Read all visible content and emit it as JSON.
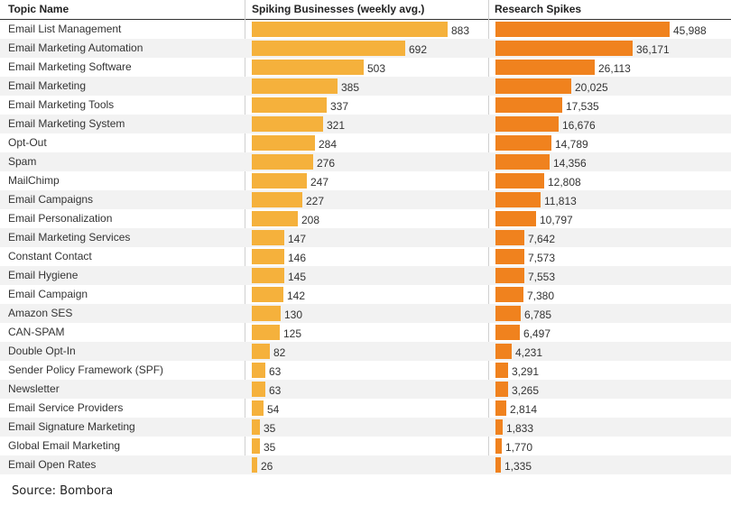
{
  "chart_data": {
    "type": "bar",
    "headers": {
      "topic": "Topic Name",
      "series_a": "Spiking Businesses (weekly avg.)",
      "series_b": "Research Spikes"
    },
    "categories": [
      "Email List Management",
      "Email Marketing Automation",
      "Email Marketing Software",
      "Email Marketing",
      "Email Marketing Tools",
      "Email Marketing System",
      "Opt-Out",
      "Spam",
      "MailChimp",
      "Email Campaigns",
      "Email Personalization",
      "Email Marketing Services",
      "Constant Contact",
      "Email Hygiene",
      "Email Campaign",
      "Amazon SES",
      "CAN-SPAM",
      "Double Opt-In",
      "Sender Policy Framework (SPF)",
      "Newsletter",
      "Email Service Providers",
      "Email Signature Marketing",
      "Global Email Marketing",
      "Email Open Rates"
    ],
    "series": [
      {
        "name": "Spiking Businesses (weekly avg.)",
        "color": "#f5b13c",
        "values": [
          883,
          692,
          503,
          385,
          337,
          321,
          284,
          276,
          247,
          227,
          208,
          147,
          146,
          145,
          142,
          130,
          125,
          82,
          63,
          63,
          54,
          35,
          35,
          26
        ],
        "labels": [
          "883",
          "692",
          "503",
          "385",
          "337",
          "321",
          "284",
          "276",
          "247",
          "227",
          "208",
          "147",
          "146",
          "145",
          "142",
          "130",
          "125",
          "82",
          "63",
          "63",
          "54",
          "35",
          "35",
          "26"
        ]
      },
      {
        "name": "Research Spikes",
        "color": "#f0821e",
        "values": [
          45988,
          36171,
          26113,
          20025,
          17535,
          16676,
          14789,
          14356,
          12808,
          11813,
          10797,
          7642,
          7573,
          7553,
          7380,
          6785,
          6497,
          4231,
          3291,
          3265,
          2814,
          1833,
          1770,
          1335
        ],
        "labels": [
          "45,988",
          "36,171",
          "26,113",
          "20,025",
          "17,535",
          "16,676",
          "14,789",
          "14,356",
          "12,808",
          "11,813",
          "10,797",
          "7,642",
          "7,573",
          "7,553",
          "7,380",
          "6,785",
          "6,497",
          "4,231",
          "3,291",
          "3,265",
          "2,814",
          "1,833",
          "1,770",
          "1,335"
        ]
      }
    ]
  },
  "footer": {
    "source": "Source: Bombora"
  }
}
